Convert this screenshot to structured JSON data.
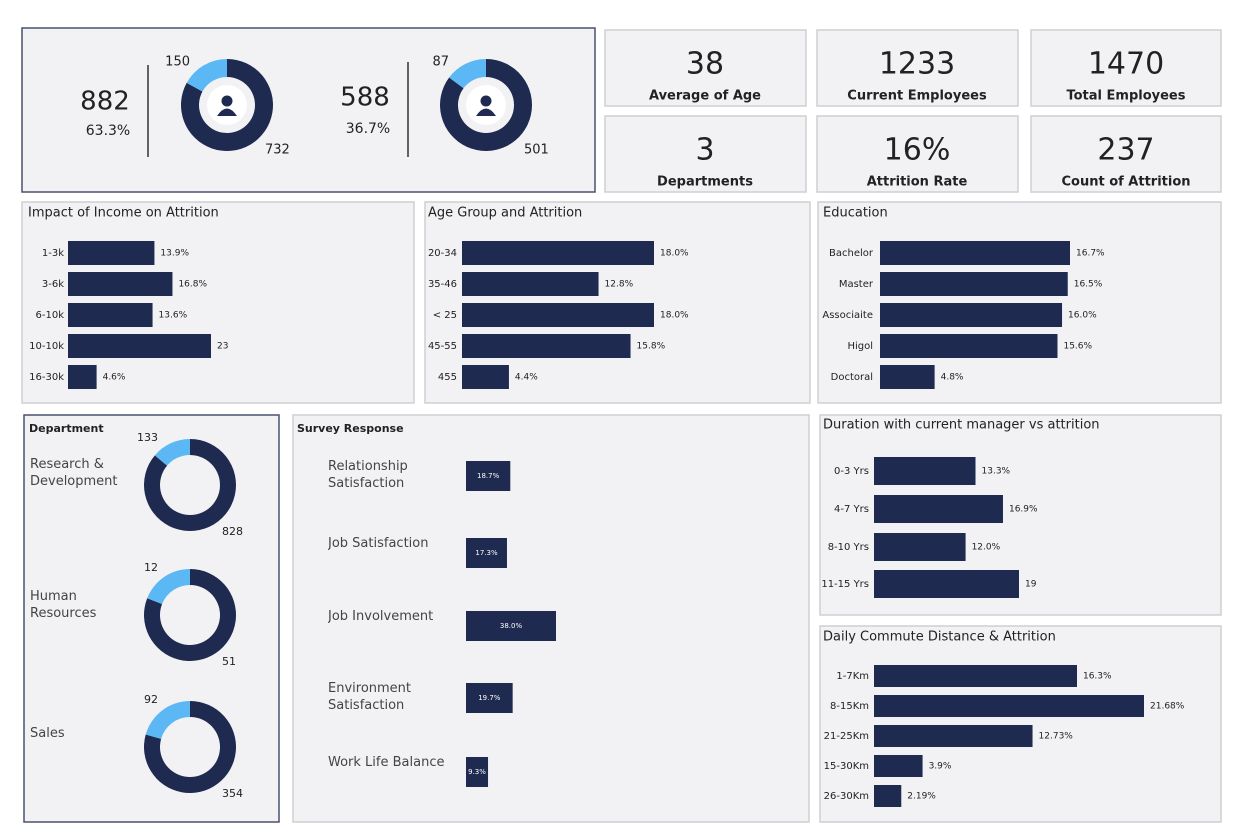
{
  "gender": {
    "totals": [
      882,
      588
    ],
    "shares": [
      "63.3%",
      "36.7%"
    ]
  },
  "cards": [
    {
      "value": "38",
      "label": "Average of Age"
    },
    {
      "value": "1233",
      "label": "Current Employees"
    },
    {
      "value": "1470",
      "label": "Total Employees"
    },
    {
      "value": "3",
      "label": "Departments"
    },
    {
      "value": "16%",
      "label": "Attrition Rate"
    },
    {
      "value": "237",
      "label": "Count of Attrition"
    }
  ],
  "chart_data": [
    {
      "type": "donut",
      "values": [
        [
          150,
          732
        ],
        [
          87,
          501
        ]
      ],
      "colors": [
        "#5bb8f5",
        "#1e2a4f"
      ]
    },
    {
      "type": "donut",
      "title": "Department",
      "categories": [
        "Research & Development",
        "Human Resources",
        "Sales"
      ],
      "values": [
        [
          133,
          828
        ],
        [
          12,
          51
        ],
        [
          92,
          354
        ]
      ],
      "colors": [
        "#5bb8f5",
        "#1e2a4f"
      ]
    },
    {
      "type": "bar",
      "title": "Impact of Income on Attrition",
      "categories": [
        "1-3k",
        "3-6k",
        "6-10k",
        "10-10k",
        "16-30k"
      ],
      "values": [
        13.9,
        16.8,
        13.6,
        23,
        4.6
      ],
      "value_labels": [
        "13.9%",
        "16.8%",
        "13.6%",
        "23",
        "4.6%"
      ],
      "color": "#1e2a4f"
    },
    {
      "type": "bar",
      "title": "Age Group and Attrition",
      "categories": [
        "20-34",
        "35-46",
        "< 25",
        "45-55",
        "455"
      ],
      "values": [
        18.0,
        12.8,
        18.0,
        15.8,
        4.4
      ],
      "value_labels": [
        "18.0%",
        "12.8%",
        "18.0%",
        "15.8%",
        "4.4%"
      ],
      "color": "#1e2a4f"
    },
    {
      "type": "bar",
      "title": "Education",
      "categories": [
        "Bachelor",
        "Master",
        "Associaite",
        "Higol",
        "Doctoral"
      ],
      "values": [
        16.7,
        16.5,
        16.0,
        15.6,
        4.8
      ],
      "value_labels": [
        "16.7%",
        "16.5%",
        "16.0%",
        "15.6%",
        "4.8%"
      ],
      "color": "#1e2a4f"
    },
    {
      "type": "bar",
      "title": "Survey Response",
      "categories": [
        "Relationship Satisfaction",
        "Job Satisfaction",
        "Job Involvement",
        "Environment Satisfaction",
        "Work Life Balance"
      ],
      "values": [
        18.7,
        17.3,
        38.0,
        19.7,
        9.3
      ],
      "value_labels": [
        "18.7%",
        "17.3%",
        "38.0%",
        "19.7%",
        "9.3%"
      ],
      "color": "#1e2a4f"
    },
    {
      "type": "bar",
      "title": "Duration with current manager vs attrition",
      "categories": [
        "0-3 Yrs",
        "4-7 Yrs",
        "8-10 Yrs",
        "11-15 Yrs"
      ],
      "values": [
        13.3,
        16.9,
        12.0,
        19
      ],
      "value_labels": [
        "13.3%",
        "16.9%",
        "12.0%",
        "19"
      ],
      "color": "#1e2a4f"
    },
    {
      "type": "bar",
      "title": "Daily Commute Distance & Attrition",
      "categories": [
        "1-7Km",
        "8-15Km",
        "21-25Km",
        "15-30Km",
        "26-30Km"
      ],
      "values": [
        16.3,
        21.68,
        12.73,
        3.9,
        2.19
      ],
      "value_labels": [
        "16.3%",
        "21.68%",
        "12.73%",
        "3.9%",
        "2.19%"
      ],
      "color": "#1e2a4f"
    }
  ]
}
